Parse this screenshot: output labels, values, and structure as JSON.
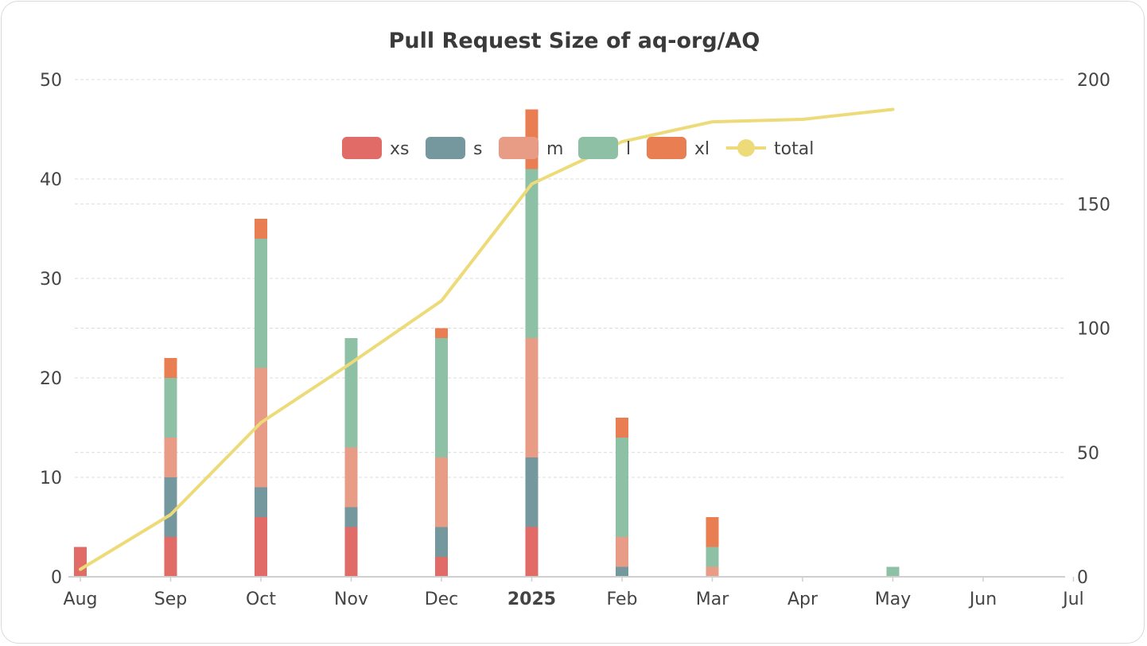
{
  "chart_data": {
    "type": "bar",
    "title": "Pull Request Size of aq-org/AQ",
    "categories": [
      "Aug",
      "Sep",
      "Oct",
      "Nov",
      "Dec",
      "2025",
      "Feb",
      "Mar",
      "Apr",
      "May",
      "Jun",
      "Jul"
    ],
    "bold_categories": [
      "2025"
    ],
    "stacked": true,
    "series": [
      {
        "name": "xs",
        "color": "#e06b67",
        "values": [
          3,
          4,
          6,
          5,
          2,
          5,
          0,
          0,
          0,
          0,
          0,
          0
        ]
      },
      {
        "name": "s",
        "color": "#75989e",
        "values": [
          0,
          6,
          3,
          2,
          3,
          7,
          1,
          0,
          0,
          0,
          0,
          0
        ]
      },
      {
        "name": "m",
        "color": "#e89c85",
        "values": [
          0,
          4,
          12,
          6,
          7,
          12,
          3,
          1,
          0,
          0,
          0,
          0
        ]
      },
      {
        "name": "l",
        "color": "#8ec0a6",
        "values": [
          0,
          6,
          13,
          11,
          12,
          17,
          10,
          2,
          0,
          1,
          0,
          0
        ]
      },
      {
        "name": "xl",
        "color": "#ea7e53",
        "values": [
          0,
          2,
          2,
          0,
          1,
          6,
          2,
          3,
          0,
          0,
          0,
          0
        ]
      }
    ],
    "line_series": {
      "name": "total",
      "color": "#ecdb78",
      "axis": "right",
      "values": [
        3,
        25,
        62,
        86,
        111,
        158,
        175,
        183,
        184,
        188
      ]
    },
    "ylim": [
      0,
      50
    ],
    "yticks": [
      "0",
      "10",
      "20",
      "30",
      "40",
      "50"
    ],
    "y2lim": [
      0,
      200
    ],
    "y2ticks": [
      "0",
      "50",
      "100",
      "150",
      "200"
    ],
    "grid": true,
    "legend_position": "top-center"
  }
}
